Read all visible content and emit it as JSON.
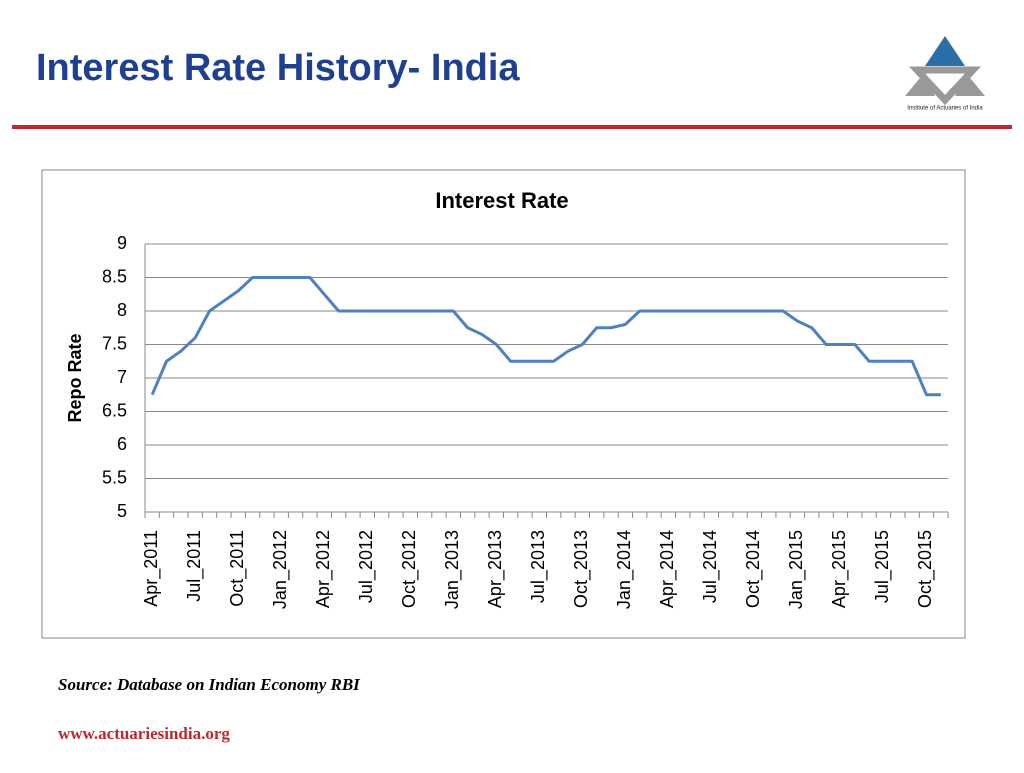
{
  "header": {
    "title": "Interest Rate History- India",
    "logo_text": "Institute of Actuaries of India"
  },
  "chart_data": {
    "type": "line",
    "title": "Interest Rate",
    "ylabel": "Repo Rate",
    "categories": [
      "Apr_2011",
      null,
      null,
      "Jul_2011",
      null,
      null,
      "Oct_2011",
      null,
      null,
      "Jan_2012",
      null,
      null,
      "Apr_2012",
      null,
      null,
      "Jul_2012",
      null,
      null,
      "Oct_2012",
      null,
      null,
      "Jan_2013",
      null,
      null,
      "Apr_2013",
      null,
      null,
      "Jul_2013",
      null,
      null,
      "Oct_2013",
      null,
      null,
      "Jan_2014",
      null,
      null,
      "Apr_2014",
      null,
      null,
      "Jul_2014",
      null,
      null,
      "Oct_2014",
      null,
      null,
      "Jan_2015",
      null,
      null,
      "Apr_2015",
      null,
      null,
      "Jul_2015",
      null,
      null,
      "Oct_2015",
      null
    ],
    "values": [
      6.75,
      7.25,
      7.4,
      7.6,
      8.0,
      8.15,
      8.3,
      8.5,
      8.5,
      8.5,
      8.5,
      8.5,
      8.25,
      8.0,
      8.0,
      8.0,
      8.0,
      8.0,
      8.0,
      8.0,
      8.0,
      8.0,
      7.75,
      7.65,
      7.5,
      7.25,
      7.25,
      7.25,
      7.25,
      7.4,
      7.5,
      7.75,
      7.75,
      7.8,
      8.0,
      8.0,
      8.0,
      8.0,
      8.0,
      8.0,
      8.0,
      8.0,
      8.0,
      8.0,
      8.0,
      7.85,
      7.75,
      7.5,
      7.5,
      7.5,
      7.25,
      7.25,
      7.25,
      7.25,
      6.75,
      6.75
    ],
    "color": "#4f81bd",
    "ylim": [
      5,
      9
    ],
    "yticks": [
      5,
      5.5,
      6,
      6.5,
      7,
      7.5,
      8,
      8.5,
      9
    ],
    "grid": true
  },
  "footer": {
    "source": "Source: Database on Indian Economy RBI",
    "website": "www.actuariesindia.org"
  }
}
